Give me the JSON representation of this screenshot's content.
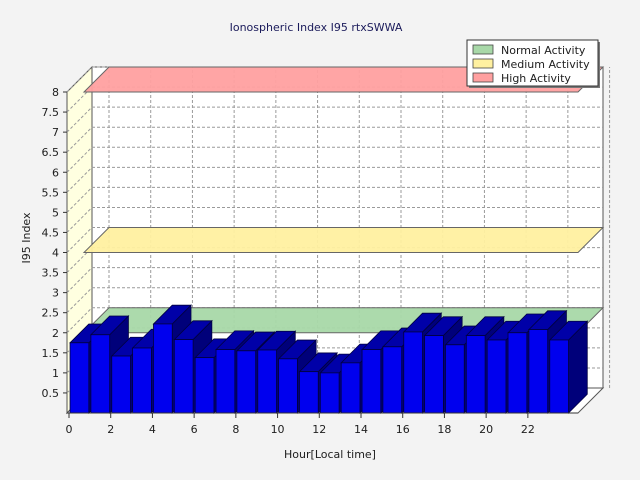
{
  "chart_data": {
    "type": "bar",
    "title": "Ionospheric Index I95 rtxSWWA",
    "xlabel": "Hour[Local time]",
    "ylabel": "I95 Index",
    "ylim": [
      0,
      8
    ],
    "yticks": [
      "0.5",
      "1",
      "1.5",
      "2",
      "2.5",
      "3",
      "3.5",
      "4",
      "4.5",
      "5",
      "5.5",
      "6",
      "6.5",
      "7",
      "7.5",
      "8"
    ],
    "xticks": [
      "0",
      "2",
      "4",
      "6",
      "8",
      "10",
      "12",
      "14",
      "16",
      "18",
      "20",
      "22"
    ],
    "x": [
      0,
      1,
      2,
      3,
      4,
      5,
      6,
      7,
      8,
      9,
      10,
      11,
      12,
      13,
      14,
      15,
      16,
      17,
      18,
      19,
      20,
      21,
      22,
      23
    ],
    "values": [
      1.75,
      1.95,
      1.42,
      1.62,
      2.22,
      1.83,
      1.38,
      1.58,
      1.55,
      1.57,
      1.35,
      1.03,
      1.0,
      1.25,
      1.58,
      1.65,
      2.02,
      1.93,
      1.7,
      1.93,
      1.82,
      2.0,
      2.08,
      1.82
    ],
    "bar_color": "#0000ee",
    "bands": [
      {
        "name": "Normal Activity",
        "value": 2.0,
        "color": "#a8d8a8"
      },
      {
        "name": "Medium Activity",
        "value": 4.0,
        "color": "#fff0a0"
      },
      {
        "name": "High Activity",
        "value": 8.0,
        "color": "#ffa0a0"
      }
    ],
    "grid": true,
    "legend_position": "top-right"
  }
}
